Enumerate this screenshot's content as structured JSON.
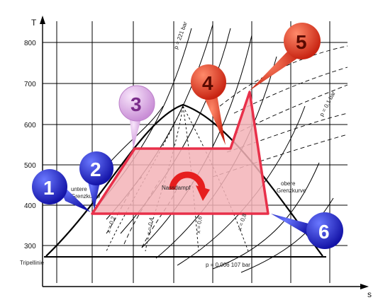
{
  "axes": {
    "y_label": "T",
    "x_label": "s",
    "y_ticks": [
      "800",
      "700",
      "600",
      "500",
      "400",
      "300"
    ]
  },
  "labels": {
    "triple_line": "Tripellinie",
    "pressure": "p = 0,006 107 bar",
    "wet_steam": "Nassdampf",
    "upper_limit_line_1": "obere",
    "upper_limit_line_2": "Grenzkurve",
    "lower_limit_line_1": "untere",
    "lower_limit_line_2": "Grenzkurve",
    "top_pressure": "p = 221 bar",
    "right_pressure": "p = 0,1 bar",
    "x02": "x = 0,2",
    "x04": "x = 0,4",
    "x06": "x = 0,6",
    "x08": "x = 0,8"
  },
  "callouts": [
    {
      "number": "1",
      "color": "#1f22c8",
      "text_color": "#ffffff"
    },
    {
      "number": "2",
      "color": "#1f22c8",
      "text_color": "#ffffff"
    },
    {
      "number": "3",
      "color": "#e3b6ea",
      "text_color": "#7a2c8a"
    },
    {
      "number": "4",
      "color": "#e0402a",
      "text_color": "#5a0a00"
    },
    {
      "number": "5",
      "color": "#e0402a",
      "text_color": "#5a0a00"
    },
    {
      "number": "6",
      "color": "#1f22c8",
      "text_color": "#ffffff"
    }
  ],
  "colors": {
    "cycle_fill": "#f3b3b7",
    "cycle_stroke": "#e8304a",
    "grid": "#000000",
    "curve": "#000000"
  }
}
